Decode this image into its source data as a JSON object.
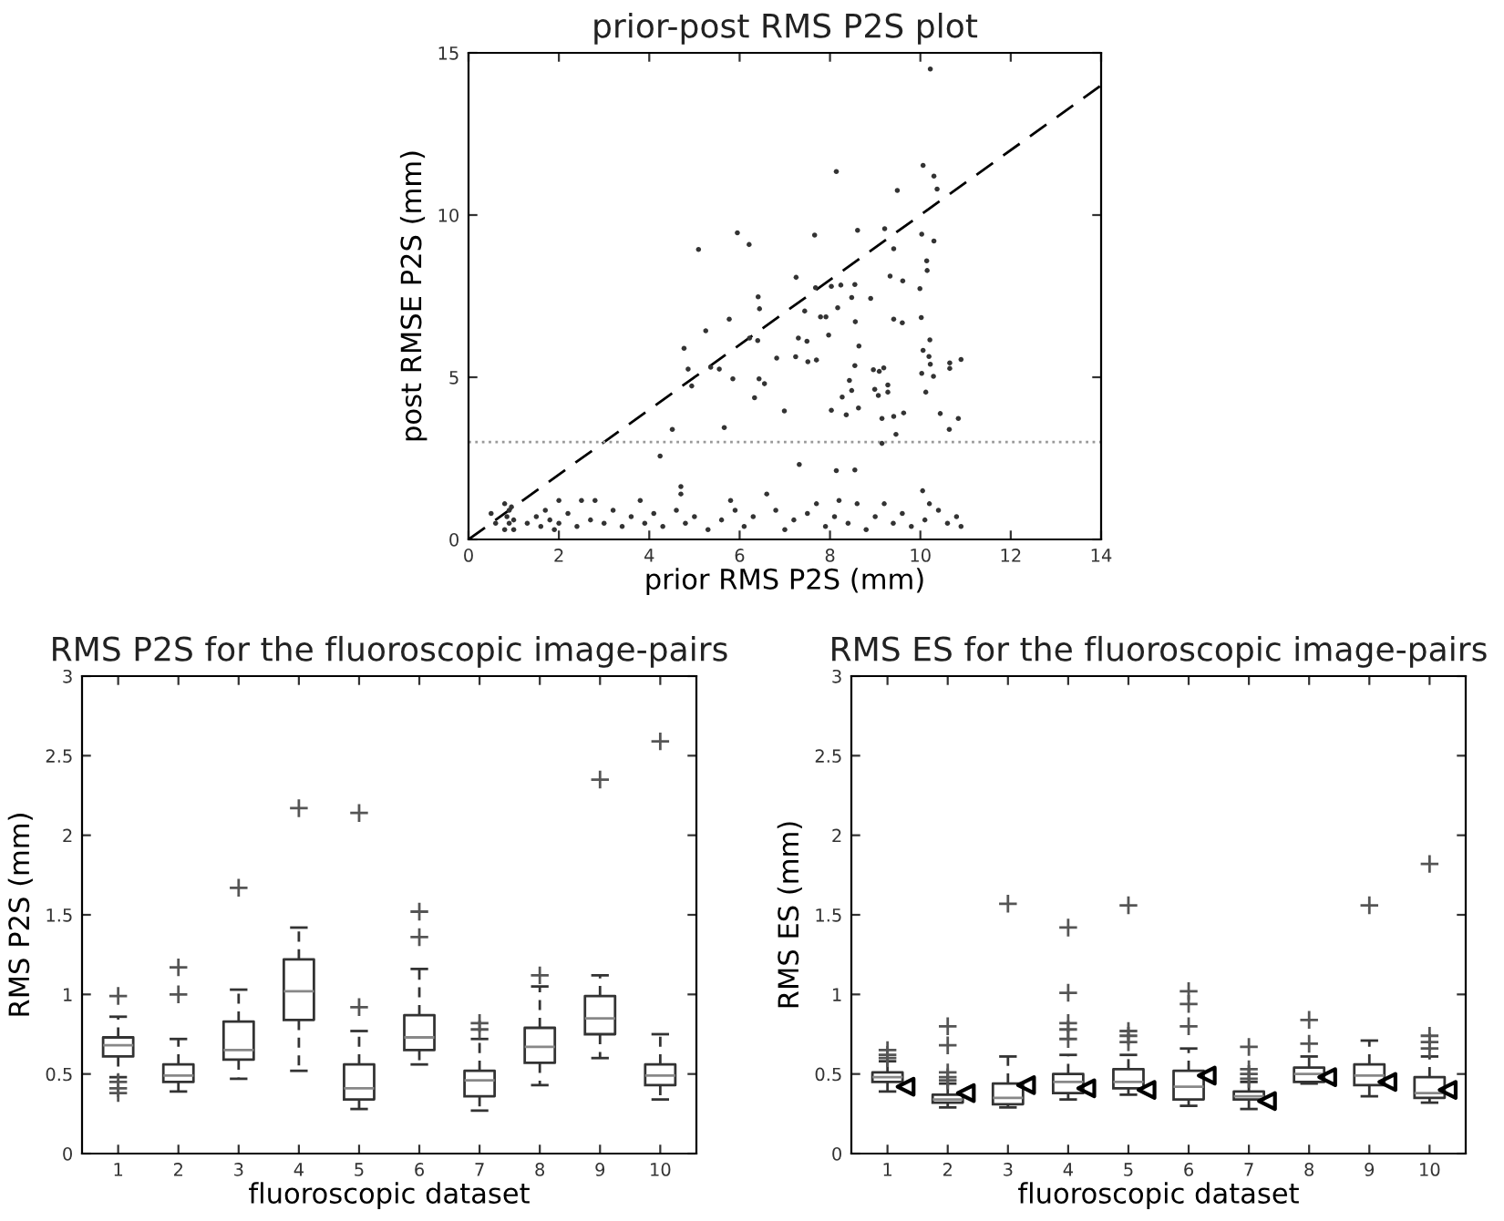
{
  "chart_data": [
    {
      "type": "scatter",
      "title": "prior-post RMS P2S plot",
      "xlabel": "prior RMS P2S (mm)",
      "ylabel": "post RMSE P2S (mm)",
      "xlim": [
        0,
        14
      ],
      "ylim": [
        0,
        15
      ],
      "xticks": [
        0,
        2,
        4,
        6,
        8,
        10,
        12,
        14
      ],
      "yticks": [
        0,
        5,
        10,
        15
      ],
      "grid": false,
      "legend": false,
      "ref_lines": [
        {
          "axis": "y",
          "value": 3,
          "color": "#999999",
          "line_style": "dotted"
        }
      ],
      "series": [
        {
          "color": "#333333",
          "marker": "circle",
          "x": [
            10.22,
            8.14,
            10.06,
            10.3,
            10.37,
            9.49,
            5.09,
            5.95,
            6.21,
            7.66,
            8.61,
            9.21,
            10.03,
            10.3,
            9.41,
            10.14,
            10.15,
            9.33,
            9.61,
            7.25,
            7.68,
            8.03,
            8.24,
            8.55,
            9.99,
            8.9,
            8.48,
            6.41,
            6.44,
            5.77,
            5.25,
            7.44,
            7.79,
            7.91,
            8.17,
            8.56,
            10.02,
            9.41,
            9.6,
            7.3,
            7.49,
            7.97,
            6.22,
            6.4,
            10.21,
            8.64,
            4.77,
            6.82,
            7.24,
            7.51,
            7.7,
            8.55,
            10.06,
            10.19,
            10.22,
            10.65,
            10.9,
            10.65,
            5.36,
            5.55,
            4.86,
            4.94,
            5.85,
            6.43,
            6.55,
            8.96,
            9.09,
            9.19,
            10.03,
            10.29,
            8.43,
            8.48,
            8.27,
            8.99,
            9.07,
            9.28,
            9.28,
            10.12,
            6.33,
            8.03,
            6.99,
            8.36,
            8.63,
            9.15,
            9.63,
            9.41,
            10.44,
            10.84,
            10.64,
            5.66,
            4.51,
            9.46,
            9.15,
            4.24,
            7.32,
            8.14,
            8.55,
            4.7,
            10.05,
            0.5,
            0.6,
            0.8,
            0.8,
            0.85,
            0.9,
            0.9,
            0.95,
            1.0,
            1.0,
            1.3,
            1.5,
            1.6,
            1.7,
            1.8,
            1.9,
            2.0,
            2.0,
            2.2,
            2.4,
            2.5,
            2.7,
            2.8,
            3.0,
            3.2,
            3.4,
            3.6,
            3.8,
            3.9,
            4.1,
            4.3,
            4.6,
            4.7,
            4.8,
            5.0,
            5.3,
            5.6,
            5.8,
            5.9,
            6.1,
            6.3,
            6.6,
            6.8,
            7.0,
            7.2,
            7.5,
            7.7,
            7.9,
            8.1,
            8.2,
            8.4,
            8.6,
            8.8,
            9.0,
            9.2,
            9.4,
            9.6,
            9.8,
            10.1,
            10.2,
            10.4,
            10.6,
            10.8,
            10.9
          ],
          "values": [
            14.5,
            11.34,
            11.53,
            11.2,
            10.8,
            10.76,
            8.94,
            9.45,
            9.09,
            9.38,
            9.53,
            9.58,
            9.41,
            9.2,
            8.96,
            8.59,
            8.29,
            8.12,
            7.97,
            8.08,
            7.76,
            7.8,
            7.84,
            7.86,
            7.73,
            7.43,
            7.46,
            7.48,
            7.11,
            6.79,
            6.43,
            7.04,
            6.86,
            6.86,
            7.14,
            6.71,
            6.84,
            6.79,
            6.68,
            6.21,
            6.11,
            6.3,
            6.21,
            6.13,
            6.15,
            5.96,
            5.89,
            5.59,
            5.63,
            5.48,
            5.53,
            5.36,
            5.83,
            5.64,
            5.4,
            5.44,
            5.55,
            5.27,
            5.31,
            5.25,
            5.25,
            4.73,
            4.95,
            4.95,
            4.8,
            5.23,
            5.18,
            5.29,
            5.12,
            5.03,
            4.9,
            4.59,
            4.39,
            4.63,
            4.44,
            4.76,
            4.54,
            4.54,
            4.37,
            3.98,
            3.96,
            3.84,
            4.05,
            3.73,
            3.9,
            3.79,
            3.88,
            3.73,
            3.39,
            3.45,
            3.39,
            3.24,
            2.96,
            2.57,
            2.31,
            2.12,
            2.14,
            1.63,
            1.5,
            0.8,
            0.5,
            1.1,
            0.3,
            0.7,
            0.9,
            0.5,
            1.0,
            0.3,
            0.6,
            0.5,
            0.7,
            0.4,
            0.9,
            0.6,
            0.3,
            1.2,
            0.5,
            0.8,
            0.4,
            1.2,
            0.6,
            1.2,
            0.5,
            0.9,
            0.4,
            0.7,
            1.2,
            0.5,
            0.8,
            0.4,
            0.9,
            1.4,
            0.5,
            0.7,
            0.3,
            0.6,
            1.2,
            0.9,
            0.4,
            0.7,
            1.4,
            0.9,
            0.3,
            0.6,
            0.8,
            1.1,
            0.4,
            0.7,
            1.2,
            0.5,
            1.1,
            0.3,
            0.7,
            1.1,
            0.5,
            0.8,
            0.4,
            0.6,
            1.1,
            0.9,
            0.5,
            0.7,
            0.4
          ]
        },
        {
          "type": "line",
          "color": "#000000",
          "line_style": "dashed",
          "marker": "none",
          "x": [
            0,
            14
          ],
          "values": [
            0,
            14
          ]
        }
      ]
    },
    {
      "type": "box",
      "title": "RMS P2S for the fluoroscopic image-pairs",
      "xlabel": "fluoroscopic dataset",
      "ylabel": "RMS P2S (mm)",
      "ylim": [
        0,
        3
      ],
      "yticks": [
        0,
        0.5,
        1,
        1.5,
        2,
        2.5,
        3
      ],
      "grid": false,
      "legend": false,
      "categories": [
        "1",
        "2",
        "3",
        "4",
        "5",
        "6",
        "7",
        "8",
        "9",
        "10"
      ],
      "series": [
        {
          "color": "#333333",
          "boxes": [
            {
              "low": 0.48,
              "q1": 0.61,
              "median": 0.68,
              "q3": 0.73,
              "high": 0.86,
              "outliers": [
                0.99,
                0.45,
                0.41,
                0.38
              ]
            },
            {
              "low": 0.39,
              "q1": 0.45,
              "median": 0.49,
              "q3": 0.56,
              "high": 0.72,
              "outliers": [
                1.0,
                1.17
              ]
            },
            {
              "low": 0.47,
              "q1": 0.59,
              "median": 0.65,
              "q3": 0.83,
              "high": 1.03,
              "outliers": [
                1.67
              ]
            },
            {
              "low": 0.52,
              "q1": 0.84,
              "median": 1.02,
              "q3": 1.22,
              "high": 1.42,
              "outliers": [
                2.17
              ]
            },
            {
              "low": 0.28,
              "q1": 0.34,
              "median": 0.41,
              "q3": 0.56,
              "high": 0.77,
              "outliers": [
                0.92,
                2.14
              ]
            },
            {
              "low": 0.56,
              "q1": 0.65,
              "median": 0.73,
              "q3": 0.87,
              "high": 1.16,
              "outliers": [
                1.36,
                1.52
              ]
            },
            {
              "low": 0.27,
              "q1": 0.36,
              "median": 0.46,
              "q3": 0.52,
              "high": 0.72,
              "outliers": [
                0.78,
                0.82
              ]
            },
            {
              "low": 0.43,
              "q1": 0.57,
              "median": 0.67,
              "q3": 0.79,
              "high": 1.05,
              "outliers": [
                1.12
              ]
            },
            {
              "low": 0.6,
              "q1": 0.75,
              "median": 0.85,
              "q3": 0.99,
              "high": 1.12,
              "outliers": [
                2.35
              ]
            },
            {
              "low": 0.34,
              "q1": 0.43,
              "median": 0.49,
              "q3": 0.56,
              "high": 0.75,
              "outliers": [
                2.59
              ]
            }
          ]
        }
      ]
    },
    {
      "type": "box",
      "title": "RMS ES for the fluoroscopic image-pairs",
      "xlabel": "fluoroscopic dataset",
      "ylabel": "RMS ES (mm)",
      "ylim": [
        0,
        3
      ],
      "yticks": [
        0,
        0.5,
        1,
        1.5,
        2,
        2.5,
        3
      ],
      "grid": false,
      "legend": false,
      "categories": [
        "1",
        "2",
        "3",
        "4",
        "5",
        "6",
        "7",
        "8",
        "9",
        "10"
      ],
      "series": [
        {
          "color": "#333333",
          "boxes": [
            {
              "low": 0.39,
              "q1": 0.45,
              "median": 0.48,
              "q3": 0.51,
              "high": 0.58,
              "outliers": [
                0.6,
                0.62,
                0.65
              ]
            },
            {
              "low": 0.29,
              "q1": 0.32,
              "median": 0.34,
              "q3": 0.37,
              "high": 0.44,
              "outliers": [
                0.46,
                0.48,
                0.51,
                0.68,
                0.8
              ]
            },
            {
              "low": 0.29,
              "q1": 0.31,
              "median": 0.35,
              "q3": 0.44,
              "high": 0.61,
              "outliers": [
                1.57
              ]
            },
            {
              "low": 0.34,
              "q1": 0.38,
              "median": 0.45,
              "q3": 0.5,
              "high": 0.62,
              "outliers": [
                0.72,
                0.78,
                0.82,
                1.01,
                1.42
              ]
            },
            {
              "low": 0.37,
              "q1": 0.41,
              "median": 0.45,
              "q3": 0.53,
              "high": 0.62,
              "outliers": [
                0.7,
                0.74,
                0.77,
                1.56
              ]
            },
            {
              "low": 0.3,
              "q1": 0.34,
              "median": 0.42,
              "q3": 0.52,
              "high": 0.66,
              "outliers": [
                0.8,
                0.94,
                1.02
              ]
            },
            {
              "low": 0.28,
              "q1": 0.34,
              "median": 0.36,
              "q3": 0.39,
              "high": 0.45,
              "outliers": [
                0.47,
                0.5,
                0.53,
                0.67
              ]
            },
            {
              "low": 0.44,
              "q1": 0.45,
              "median": 0.5,
              "q3": 0.54,
              "high": 0.61,
              "outliers": [
                0.69,
                0.84
              ]
            },
            {
              "low": 0.36,
              "q1": 0.43,
              "median": 0.49,
              "q3": 0.56,
              "high": 0.71,
              "outliers": [
                1.56
              ]
            },
            {
              "low": 0.32,
              "q1": 0.35,
              "median": 0.38,
              "q3": 0.48,
              "high": 0.61,
              "outliers": [
                0.66,
                0.7,
                0.74,
                1.82
              ]
            }
          ]
        },
        {
          "type": "scatter",
          "color": "#000000",
          "marker": "triangle",
          "x": [
            "1",
            "2",
            "3",
            "4",
            "5",
            "6",
            "7",
            "8",
            "9",
            "10"
          ],
          "values": [
            0.42,
            0.38,
            0.43,
            0.41,
            0.4,
            0.49,
            0.33,
            0.48,
            0.45,
            0.4
          ]
        }
      ]
    }
  ]
}
